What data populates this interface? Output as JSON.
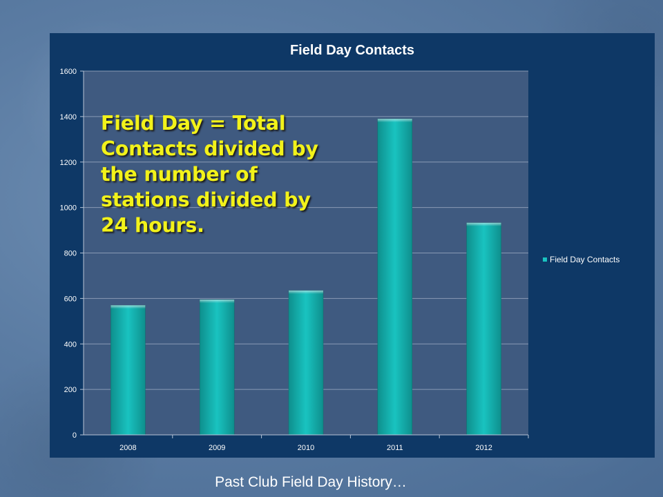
{
  "footer": {
    "caption": "Past Club Field Day History…"
  },
  "annotation": {
    "lines": [
      "Field Day = Total",
      "Contacts divided by",
      "the number of",
      "stations divided by",
      "24 hours."
    ]
  },
  "chart_data": {
    "type": "bar",
    "title": "Field Day Contacts",
    "categories": [
      "2008",
      "2009",
      "2010",
      "2011",
      "2012"
    ],
    "series": [
      {
        "name": "Field Day Contacts",
        "values": [
          570,
          595,
          635,
          1390,
          933
        ]
      }
    ],
    "ylim": [
      0,
      1600
    ],
    "yticks": [
      0,
      200,
      400,
      600,
      800,
      1000,
      1200,
      1400,
      1600
    ],
    "xlabel": "",
    "ylabel": "",
    "grid": true,
    "legend_position": "right",
    "colors": {
      "bar": "#19c3c0",
      "bar_dark": "#0e8f8d",
      "plot_bg": "#3f5a80",
      "chart_bg": "#0e3866",
      "annotation": "#f2f21a"
    }
  }
}
